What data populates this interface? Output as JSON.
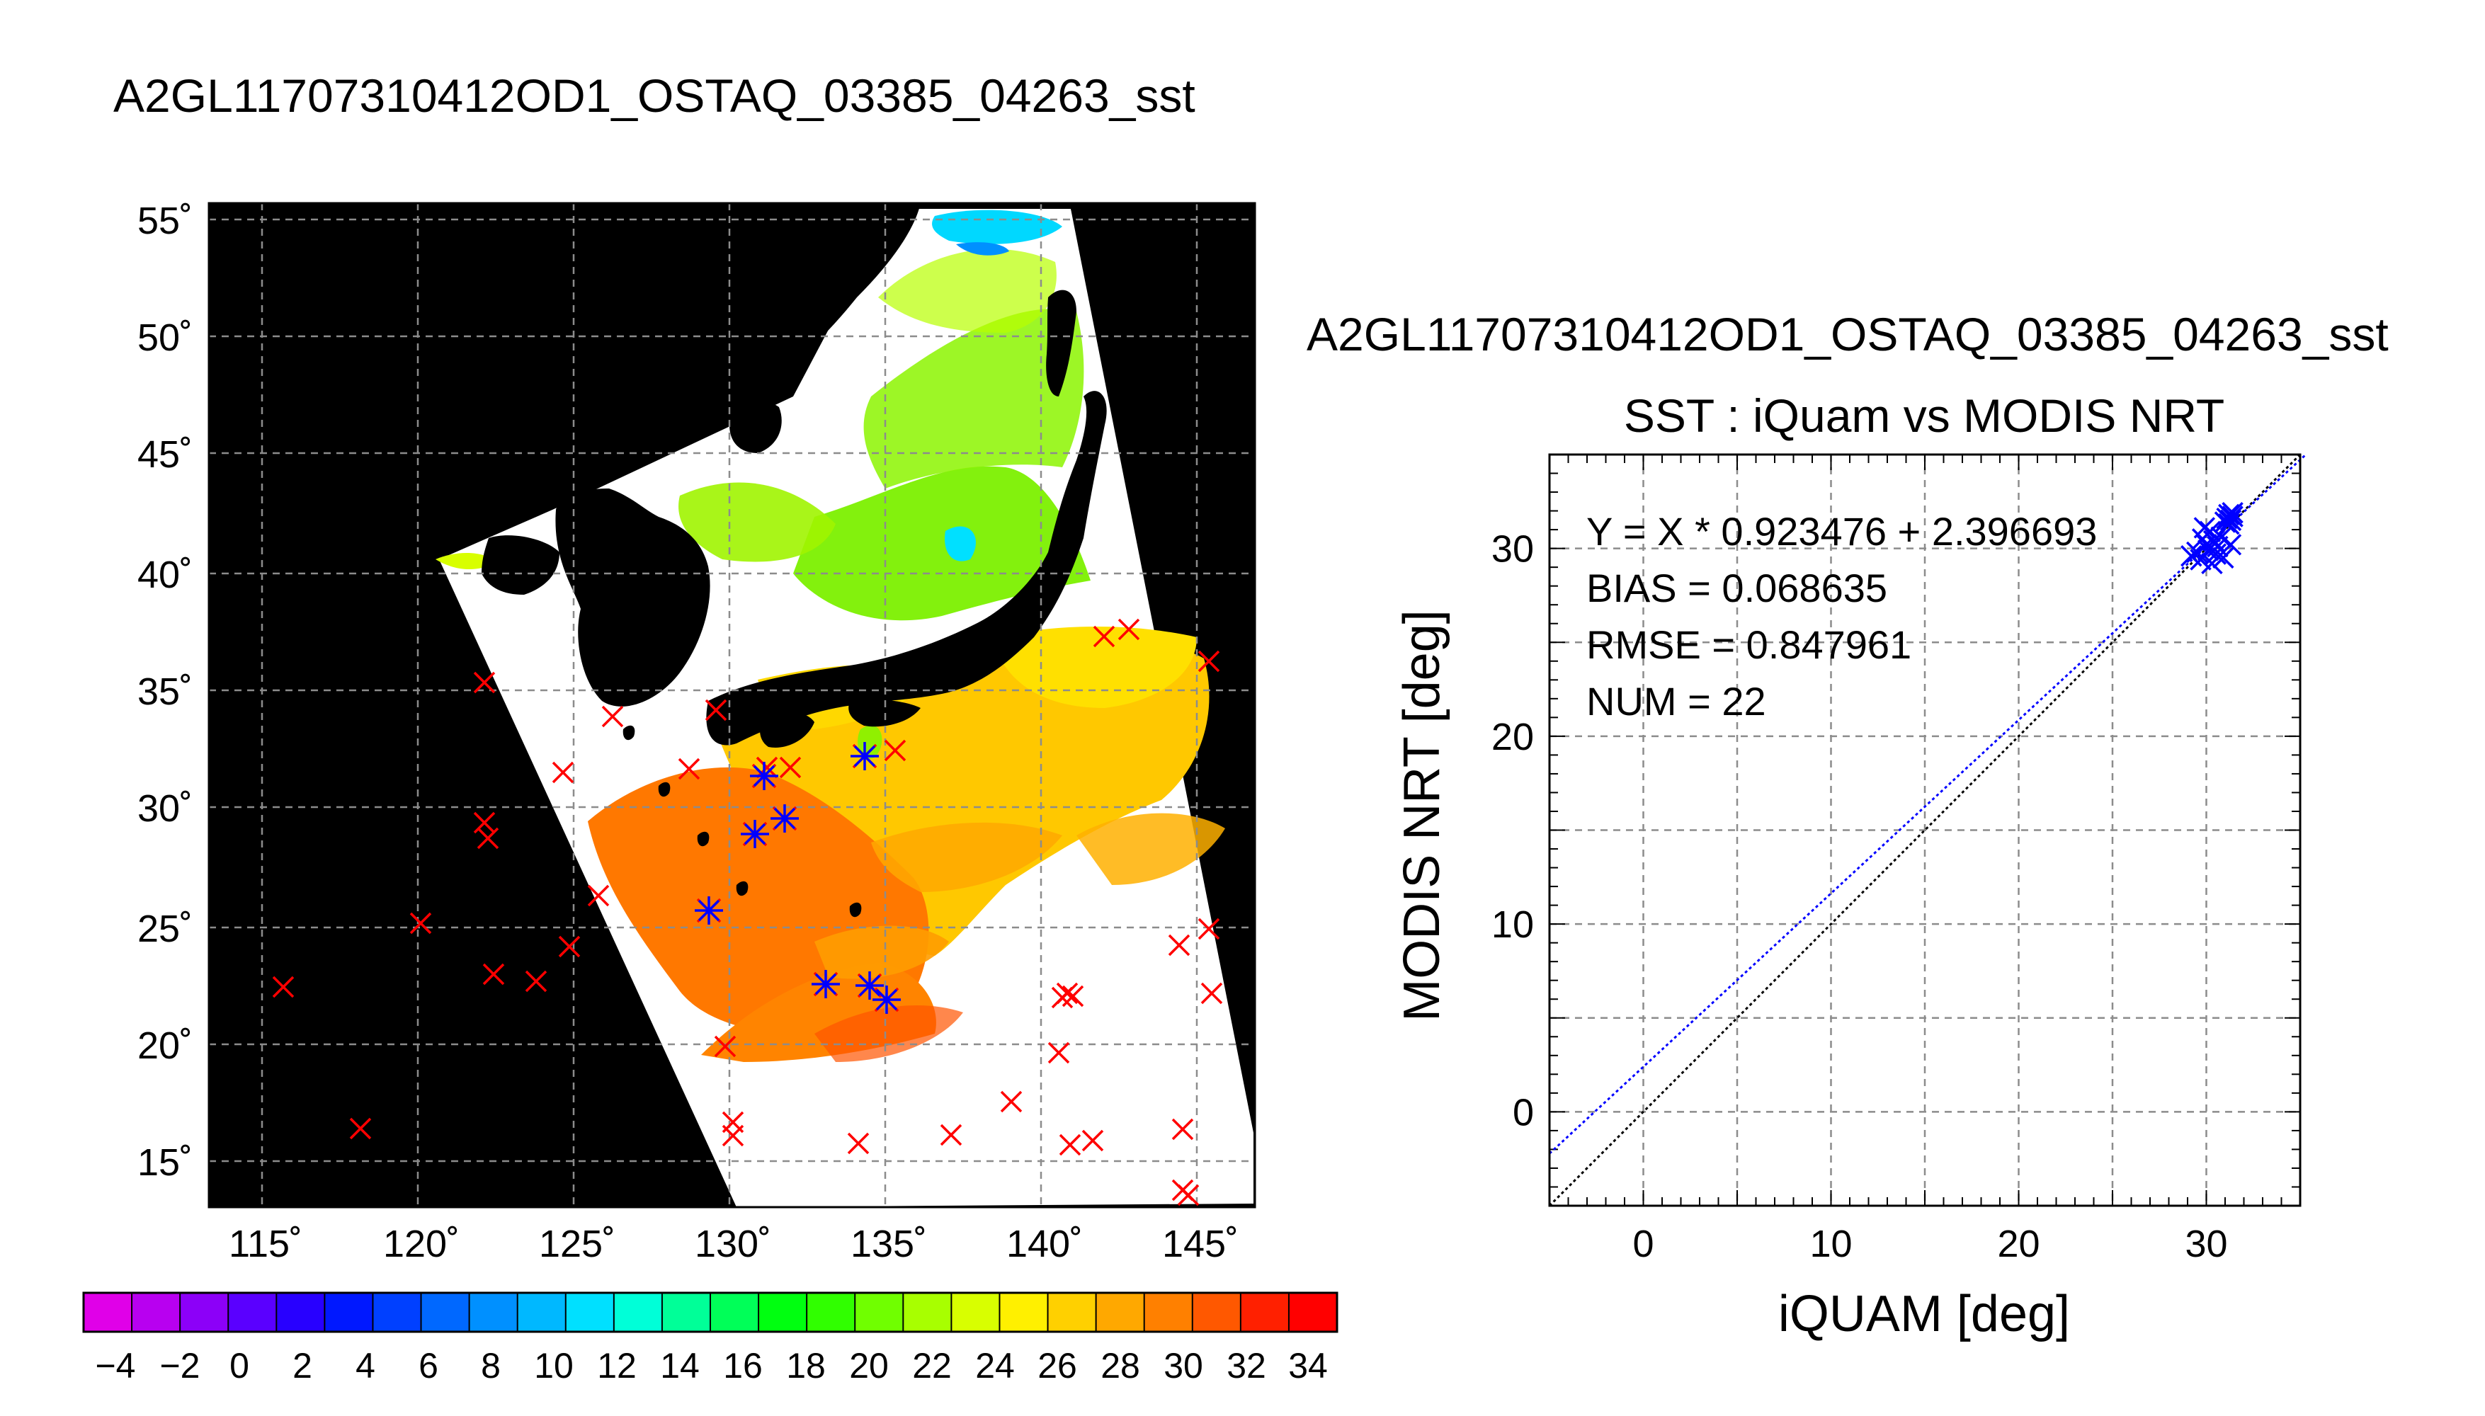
{
  "map_panel": {
    "title": "A2GL11707310412OD1_OSTAQ_03385_04263_sst",
    "lon_ticks": [
      "115˚",
      "120˚",
      "125˚",
      "130˚",
      "135˚",
      "140˚",
      "145˚"
    ],
    "lat_ticks": [
      "55˚",
      "50˚",
      "45˚",
      "40˚",
      "35˚",
      "30˚",
      "25˚",
      "20˚",
      "15˚"
    ],
    "colorbar": {
      "tick_labels": [
        "−4",
        "−2",
        "0",
        "2",
        "4",
        "6",
        "8",
        "10",
        "12",
        "14",
        "16",
        "18",
        "20",
        "22",
        "24",
        "26",
        "28",
        "30",
        "32",
        "34"
      ],
      "colors": [
        "#e000e8",
        "#b800f0",
        "#8c00f8",
        "#5a00ff",
        "#2800ff",
        "#0018ff",
        "#0040ff",
        "#0068ff",
        "#0090ff",
        "#00b8ff",
        "#00e0ff",
        "#00ffd8",
        "#00ff98",
        "#00ff58",
        "#00ff10",
        "#30ff00",
        "#70ff00",
        "#a8ff00",
        "#d8ff00",
        "#fff000",
        "#ffd000",
        "#ffa800",
        "#ff8000",
        "#ff5800",
        "#ff2000",
        "#ff0000"
      ]
    }
  },
  "chart_data": {
    "type": "scatter",
    "suptitle": "A2GL11707310412OD1_OSTAQ_03385_04263_sst",
    "title": "SST : iQuam vs MODIS NRT",
    "xlabel": "iQUAM [deg]",
    "ylabel": "MODIS NRT [deg]",
    "xlim": [
      -5,
      35
    ],
    "ylim": [
      -5,
      35
    ],
    "x_ticks": [
      0,
      10,
      20,
      30
    ],
    "y_ticks": [
      0,
      10,
      20,
      30
    ],
    "grid": true,
    "annotations": [
      "Y = X * 0.923476 + 2.396693",
      "BIAS = 0.068635",
      "RMSE = 0.847961",
      "NUM = 22"
    ],
    "fit": {
      "slope": 0.923476,
      "intercept": 2.396693,
      "color": "#0000ff"
    },
    "identity_line_color": "#000000",
    "marker_color": "#0000ff",
    "points": [
      {
        "x": 29.2,
        "y": 29.6
      },
      {
        "x": 29.5,
        "y": 29.8
      },
      {
        "x": 29.7,
        "y": 29.4
      },
      {
        "x": 29.9,
        "y": 31.1
      },
      {
        "x": 30.0,
        "y": 30.2
      },
      {
        "x": 30.1,
        "y": 29.9
      },
      {
        "x": 30.3,
        "y": 29.2
      },
      {
        "x": 30.4,
        "y": 30.4
      },
      {
        "x": 30.6,
        "y": 30.1
      },
      {
        "x": 30.8,
        "y": 30.6
      },
      {
        "x": 30.9,
        "y": 29.5
      },
      {
        "x": 31.0,
        "y": 31.4
      },
      {
        "x": 31.1,
        "y": 31.6
      },
      {
        "x": 31.2,
        "y": 31.8
      },
      {
        "x": 31.3,
        "y": 31.5
      },
      {
        "x": 31.4,
        "y": 31.7
      },
      {
        "x": 31.3,
        "y": 30.2
      },
      {
        "x": 30.5,
        "y": 29.7
      },
      {
        "x": 29.8,
        "y": 30.5
      },
      {
        "x": 31.2,
        "y": 31.3
      },
      {
        "x": 31.4,
        "y": 31.9
      },
      {
        "x": 30.2,
        "y": 30.9
      }
    ]
  }
}
